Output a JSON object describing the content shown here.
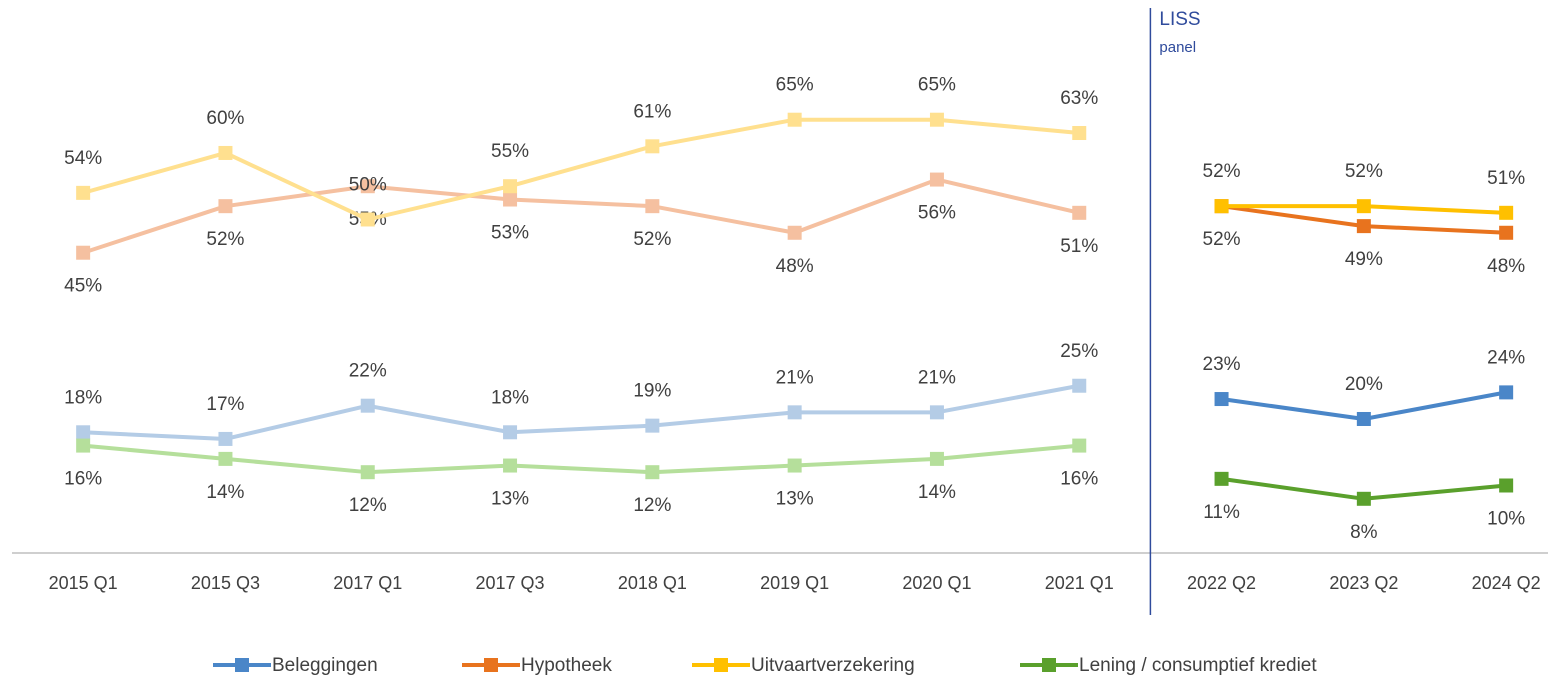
{
  "chart_data": {
    "type": "line",
    "categories": [
      "2015 Q1",
      "2015 Q3",
      "2017 Q1",
      "2017 Q3",
      "2018 Q1",
      "2019 Q1",
      "2020 Q1",
      "2021 Q1",
      "2022 Q2",
      "2023 Q2",
      "2024 Q2"
    ],
    "series": [
      {
        "name": "Beleggingen",
        "color": "#4a86c8",
        "light_color": "#b4cce6",
        "values": [
          18,
          17,
          22,
          18,
          19,
          21,
          21,
          25,
          23,
          20,
          24
        ],
        "value_labels": [
          "18%",
          "17%",
          "22%",
          "18%",
          "19%",
          "21%",
          "21%",
          "25%",
          "23%",
          "20%",
          "24%"
        ]
      },
      {
        "name": "Hypotheek",
        "color": "#e8731e",
        "light_color": "#f5c0a0",
        "values": [
          45,
          52,
          55,
          53,
          52,
          48,
          56,
          51,
          52,
          49,
          48
        ],
        "value_labels": [
          "45%",
          "52%",
          "55%",
          "53%",
          "52%",
          "48%",
          "56%",
          "51%",
          "52%",
          "49%",
          "48%"
        ]
      },
      {
        "name": "Uitvaartverzekering",
        "color": "#ffc000",
        "light_color": "#ffe08f",
        "values": [
          54,
          60,
          50,
          55,
          61,
          65,
          65,
          63,
          52,
          52,
          51
        ],
        "value_labels": [
          "54%",
          "60%",
          "50%",
          "55%",
          "61%",
          "65%",
          "65%",
          "63%",
          "52%",
          "52%",
          "51%"
        ]
      },
      {
        "name": "Lening / consumptief krediet",
        "color": "#5aa02c",
        "light_color": "#b5df9b",
        "values": [
          16,
          14,
          12,
          13,
          12,
          13,
          14,
          16,
          11,
          8,
          10
        ],
        "value_labels": [
          "16%",
          "14%",
          "12%",
          "13%",
          "12%",
          "13%",
          "14%",
          "16%",
          "11%",
          "8%",
          "10%"
        ]
      }
    ],
    "ylim": [
      0,
      83
    ],
    "annotation": {
      "text": "LISS",
      "subtext": "panel",
      "after": "2021 Q1"
    },
    "legend": "bottom"
  }
}
